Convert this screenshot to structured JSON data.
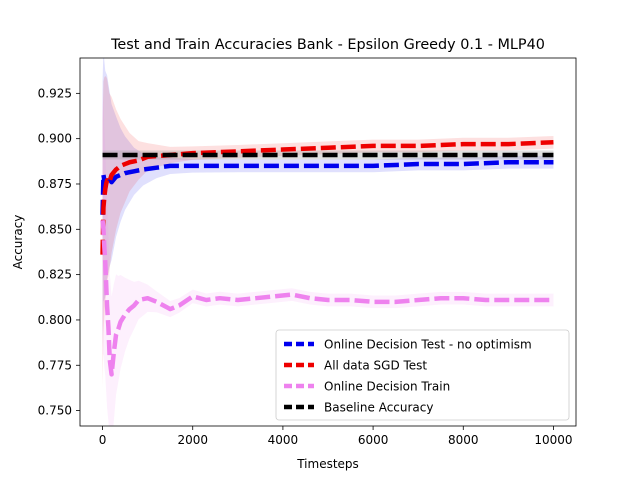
{
  "chart_data": {
    "type": "line",
    "title": "Test and Train Accuracies Bank - Epsilon Greedy 0.1 - MLP40",
    "xlabel": "Timesteps",
    "ylabel": "Accuracy",
    "xlim": [
      -500,
      10500
    ],
    "ylim": [
      0.7415,
      0.9445
    ],
    "xticks": [
      0,
      2000,
      4000,
      6000,
      8000,
      10000
    ],
    "xtick_labels": [
      "0",
      "2000",
      "4000",
      "6000",
      "8000",
      "10000"
    ],
    "yticks": [
      0.75,
      0.775,
      0.8,
      0.825,
      0.85,
      0.875,
      0.9,
      0.925
    ],
    "ytick_labels": [
      "0.750",
      "0.775",
      "0.800",
      "0.825",
      "0.850",
      "0.875",
      "0.900",
      "0.925"
    ],
    "grid": false,
    "legend_position": "lower-right",
    "series": [
      {
        "name": "Online Decision Test - no optimism",
        "color": "#0000ee",
        "x": [
          0,
          20,
          40,
          60,
          80,
          100,
          150,
          200,
          300,
          400,
          500,
          700,
          900,
          1200,
          1500,
          2000,
          3000,
          4000,
          5000,
          6000,
          7000,
          8000,
          9000,
          10000
        ],
        "y": [
          0.858,
          0.88,
          0.877,
          0.875,
          0.877,
          0.879,
          0.878,
          0.876,
          0.879,
          0.88,
          0.881,
          0.882,
          0.883,
          0.884,
          0.885,
          0.885,
          0.885,
          0.885,
          0.885,
          0.885,
          0.886,
          0.886,
          0.887,
          0.887
        ]
      },
      {
        "name": "All data SGD Test",
        "color": "#ee0000",
        "x": [
          0,
          20,
          40,
          60,
          80,
          100,
          150,
          200,
          300,
          400,
          600,
          800,
          1000,
          1500,
          2000,
          3000,
          4000,
          5000,
          6000,
          7000,
          8000,
          9000,
          10000
        ],
        "y": [
          0.836,
          0.862,
          0.868,
          0.872,
          0.875,
          0.877,
          0.876,
          0.88,
          0.883,
          0.885,
          0.887,
          0.888,
          0.89,
          0.891,
          0.892,
          0.893,
          0.894,
          0.895,
          0.896,
          0.896,
          0.897,
          0.897,
          0.898
        ]
      },
      {
        "name": "Online Decision Train",
        "color": "#ee82ee",
        "x": [
          0,
          20,
          40,
          60,
          80,
          100,
          130,
          160,
          200,
          250,
          300,
          350,
          400,
          500,
          600,
          700,
          800,
          1000,
          1200,
          1500,
          1700,
          2000,
          2300,
          2600,
          3000,
          3400,
          3800,
          4200,
          4600,
          5000,
          5500,
          6000,
          6500,
          7000,
          7500,
          8000,
          8500,
          9000,
          9500,
          10000
        ],
        "y": [
          0.855,
          0.85,
          0.84,
          0.832,
          0.82,
          0.808,
          0.796,
          0.778,
          0.77,
          0.782,
          0.792,
          0.795,
          0.799,
          0.803,
          0.806,
          0.808,
          0.811,
          0.812,
          0.81,
          0.806,
          0.808,
          0.813,
          0.811,
          0.812,
          0.811,
          0.812,
          0.813,
          0.814,
          0.812,
          0.811,
          0.811,
          0.81,
          0.81,
          0.811,
          0.812,
          0.812,
          0.811,
          0.811,
          0.811,
          0.811
        ]
      },
      {
        "name": "Baseline Accuracy",
        "color": "#000000",
        "x": [
          0,
          10000
        ],
        "y": [
          0.891,
          0.891
        ]
      }
    ]
  }
}
